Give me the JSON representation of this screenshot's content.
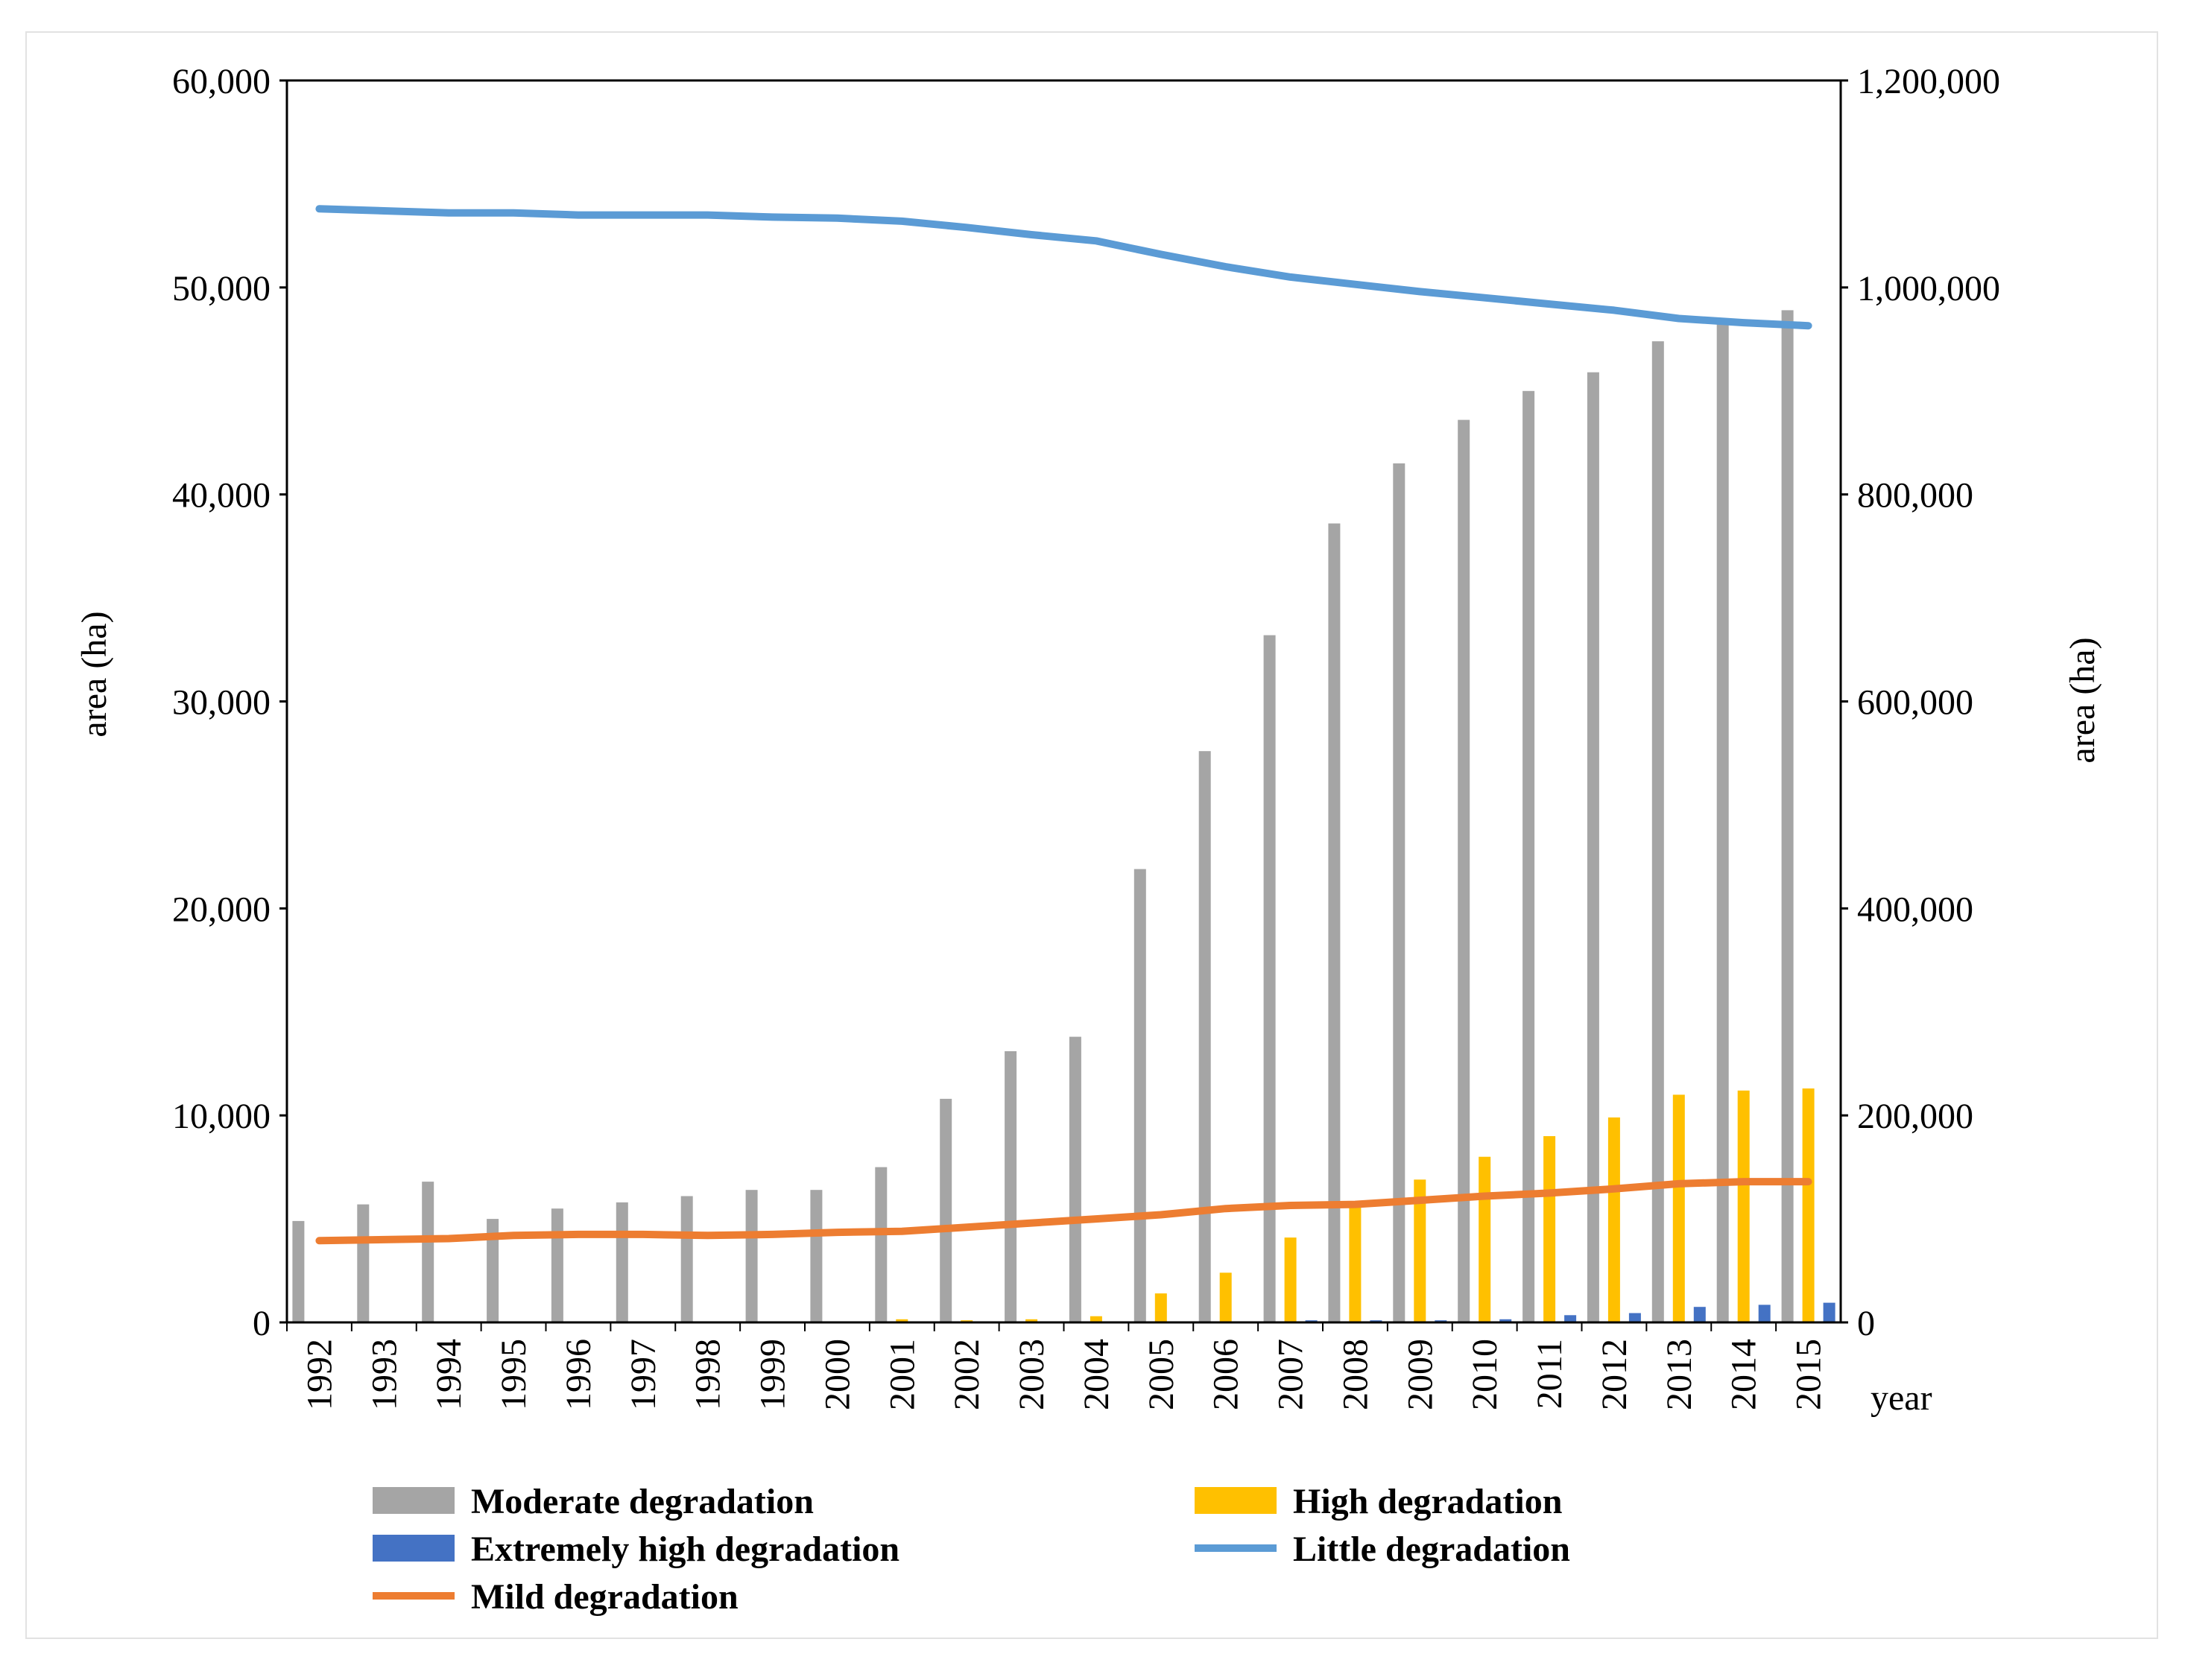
{
  "chart_data": {
    "type": "bar",
    "categories": [
      "1992",
      "1993",
      "1994",
      "1995",
      "1996",
      "1997",
      "1998",
      "1999",
      "2000",
      "2001",
      "2002",
      "2003",
      "2004",
      "2005",
      "2006",
      "2007",
      "2008",
      "2009",
      "2010",
      "2011",
      "2012",
      "2013",
      "2014",
      "2015"
    ],
    "xlabel": "year",
    "ylabel_left": "area (ha)",
    "ylabel_right": "area (ha)",
    "ylim_left": [
      0,
      60000
    ],
    "ylim_right": [
      0,
      1200000
    ],
    "yticks_left": [
      "0",
      "10,000",
      "20,000",
      "30,000",
      "40,000",
      "50,000",
      "60,000"
    ],
    "yticks_right": [
      "0",
      "200,000",
      "400,000",
      "600,000",
      "800,000",
      "1,000,000",
      "1,200,000"
    ],
    "grid": false,
    "legend_position": "bottom",
    "series": [
      {
        "name": "Moderate degradation",
        "type": "bar",
        "axis": "left",
        "color": "#a5a5a5",
        "values": [
          4900,
          5700,
          6800,
          5000,
          5500,
          5800,
          6100,
          6400,
          6400,
          7500,
          10800,
          13100,
          13800,
          21900,
          27600,
          33200,
          38600,
          41500,
          43600,
          45000,
          45900,
          47400,
          48300,
          48900
        ]
      },
      {
        "name": "High degradation",
        "type": "bar",
        "axis": "left",
        "color": "#ffc000",
        "values": [
          0,
          0,
          0,
          0,
          0,
          0,
          0,
          0,
          0,
          150,
          100,
          150,
          300,
          1400,
          2400,
          4100,
          5800,
          6900,
          8000,
          9000,
          9900,
          11000,
          11200,
          11300
        ]
      },
      {
        "name": "Extremely high degradation",
        "type": "bar",
        "axis": "left",
        "color": "#4472c4",
        "values": [
          0,
          0,
          0,
          0,
          0,
          0,
          0,
          0,
          0,
          0,
          0,
          0,
          0,
          0,
          0,
          100,
          100,
          100,
          150,
          350,
          450,
          750,
          850,
          950
        ]
      },
      {
        "name": "Little degradation",
        "type": "line",
        "axis": "right",
        "color": "#5b9bd5",
        "values": [
          1076000,
          1074000,
          1072000,
          1072000,
          1070000,
          1070000,
          1070000,
          1068000,
          1067000,
          1064000,
          1058000,
          1051000,
          1045000,
          1032000,
          1020000,
          1010000,
          1003000,
          996000,
          990000,
          984000,
          978000,
          970000,
          966000,
          963000
        ]
      },
      {
        "name": "Mild degradation",
        "type": "line",
        "axis": "right",
        "color": "#ed7d31",
        "values": [
          79000,
          80000,
          81000,
          84000,
          85000,
          85000,
          84000,
          85000,
          87000,
          88000,
          92000,
          96000,
          100000,
          104000,
          110000,
          113000,
          114000,
          118000,
          122000,
          125000,
          129000,
          134000,
          136000,
          136000
        ]
      }
    ]
  },
  "legend": {
    "moderate": "Moderate degradation",
    "high": "High degradation",
    "extreme": "Extremely high degradation",
    "little": "Little degradation",
    "mild": "Mild degradation"
  }
}
